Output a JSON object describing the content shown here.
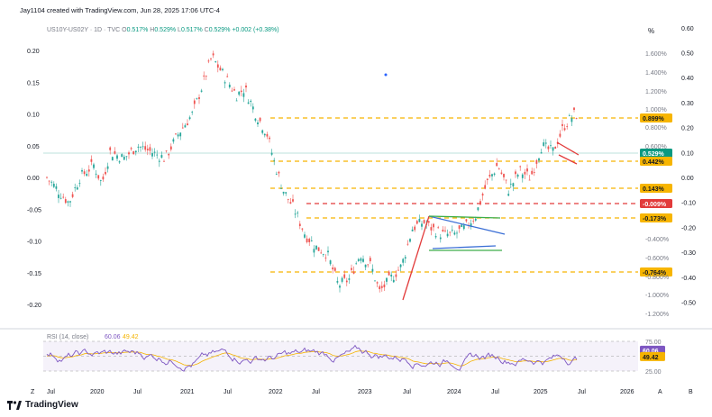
{
  "header": {
    "attribution": "Jay1104 created with TradingView.com, Jun 28, 2025 17:06 UTC-4",
    "symbol_line": "US10Y-US02Y · 1D · TVC",
    "ohlc": [
      {
        "k": "O",
        "v": "0.517%"
      },
      {
        "k": "H",
        "v": "0.529%"
      },
      {
        "k": "L",
        "v": "0.517%"
      },
      {
        "k": "C",
        "v": "0.529%"
      }
    ],
    "change": "+0.002 (+0.38%)",
    "unit_label": "%"
  },
  "footer": {
    "brand": "TradingView",
    "left_btn": "Z",
    "right_btns": [
      "A",
      "B"
    ]
  },
  "colors": {
    "up": "#26a69a",
    "down": "#ef5350",
    "orange_level": "#f7b500",
    "red_level": "#e23b3b",
    "blue": "#3b6fd6",
    "green": "#3fae4a",
    "rsi": "#7e57c2",
    "rsi_ma": "#f5b300",
    "current": "#089981"
  },
  "chart_data": {
    "type": "line",
    "series_style": "candlestick",
    "x_ticks": [
      "Jul",
      "2020",
      "Jul",
      "2021",
      "Jul",
      "2022",
      "Jul",
      "2023",
      "Jul",
      "2024",
      "Jul",
      "2025",
      "Jul",
      "2026"
    ],
    "left_axis": {
      "ticks": [
        0.2,
        0.15,
        0.1,
        0.05,
        0.0,
        -0.05,
        -0.1,
        -0.15,
        -0.2
      ],
      "labels": [
        "0.20",
        "0.15",
        "0.10",
        "0.05",
        "0.00",
        "-0.05",
        "-0.10",
        "-0.15",
        "-0.20"
      ]
    },
    "pct_axis": {
      "ticks": [
        "1.600%",
        "1.400%",
        "1.200%",
        "1.000%",
        "0.800%",
        "0.600%",
        "-0.400%",
        "-0.600%",
        "-0.800%",
        "-1.000%",
        "-1.200%"
      ]
    },
    "right_axis": {
      "ticks": [
        0.6,
        0.5,
        0.4,
        0.3,
        0.2,
        0.1,
        0.0,
        -0.1,
        -0.2,
        -0.3,
        -0.4,
        -0.5
      ],
      "labels": [
        "0.60",
        "0.50",
        "0.40",
        "0.30",
        "0.20",
        "0.10",
        "0.00",
        "-0.10",
        "-0.20",
        "-0.30",
        "-0.40",
        "-0.50"
      ]
    },
    "levels": [
      {
        "label": "0.899%",
        "color": "orange"
      },
      {
        "label": "0.529%",
        "color": "current"
      },
      {
        "label": "0.442%",
        "color": "orange"
      },
      {
        "label": "0.143%",
        "color": "orange"
      },
      {
        "label": "-0.009%",
        "color": "red"
      },
      {
        "label": "-0.173%",
        "color": "orange"
      },
      {
        "label": "-0.764%",
        "color": "orange"
      }
    ],
    "price_path": [
      [
        0.0,
        0.0
      ],
      [
        0.4,
        -0.02
      ],
      [
        0.8,
        -0.04
      ],
      [
        1.2,
        0.0
      ],
      [
        1.7,
        0.02
      ],
      [
        2.0,
        -0.01
      ],
      [
        2.3,
        0.04
      ],
      [
        2.8,
        0.03
      ],
      [
        3.3,
        0.05
      ],
      [
        3.8,
        0.04
      ],
      [
        4.3,
        0.03
      ],
      [
        4.8,
        0.07
      ],
      [
        5.3,
        0.1
      ],
      [
        5.7,
        0.15
      ],
      [
        6.0,
        0.19
      ],
      [
        6.3,
        0.17
      ],
      [
        6.6,
        0.15
      ],
      [
        6.9,
        0.13
      ],
      [
        7.2,
        0.14
      ],
      [
        7.6,
        0.1
      ],
      [
        8.0,
        0.07
      ],
      [
        8.3,
        0.02
      ],
      [
        8.6,
        -0.02
      ],
      [
        9.0,
        -0.05
      ],
      [
        9.4,
        -0.09
      ],
      [
        9.8,
        -0.11
      ],
      [
        10.2,
        -0.12
      ],
      [
        10.6,
        -0.17
      ],
      [
        11.0,
        -0.16
      ],
      [
        11.4,
        -0.12
      ],
      [
        11.8,
        -0.14
      ],
      [
        12.1,
        -0.18
      ],
      [
        12.5,
        -0.16
      ],
      [
        12.9,
        -0.14
      ],
      [
        13.3,
        -0.08
      ],
      [
        13.7,
        -0.07
      ],
      [
        14.0,
        -0.08
      ],
      [
        14.4,
        -0.09
      ],
      [
        14.8,
        -0.09
      ],
      [
        15.2,
        -0.08
      ],
      [
        15.6,
        -0.06
      ],
      [
        16.0,
        -0.01
      ],
      [
        16.4,
        0.02
      ],
      [
        16.8,
        -0.02
      ],
      [
        17.2,
        0.01
      ],
      [
        17.6,
        0.0
      ],
      [
        18.0,
        0.05
      ],
      [
        18.4,
        0.04
      ],
      [
        18.8,
        0.08
      ],
      [
        19.2,
        0.1
      ],
      [
        19.6,
        0.09
      ],
      [
        20.0,
        0.1
      ],
      [
        20.3,
        0.08
      ]
    ],
    "rsi": {
      "title": "RSI (14, close)",
      "value": "60.06",
      "ma_value": "49.42",
      "ticks": [
        "75.00",
        "50.00",
        "25.00"
      ],
      "tick_values": [
        75,
        50,
        25
      ],
      "value_num": 60.06,
      "ma_num": 49.42
    }
  }
}
